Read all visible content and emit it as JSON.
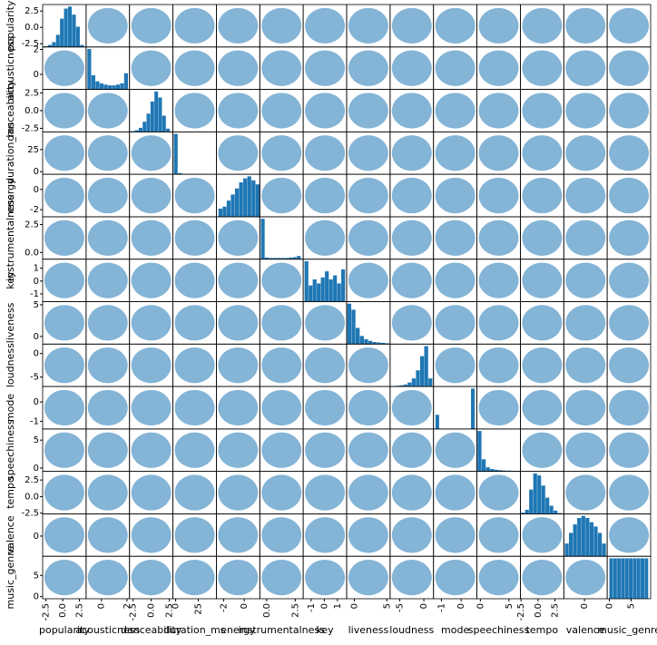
{
  "chart_data": {
    "type": "scatter_matrix",
    "color": "#1f77b4",
    "variables": [
      {
        "name": "popularity",
        "lim": [
          -3,
          3.5
        ],
        "ticks": [
          -2.5,
          {
            "value": 0,
            "label": "0.0"
          },
          2.5
        ],
        "bins": [
          -2.8,
          -2.2,
          -1.6,
          -1,
          -0.4,
          0.2,
          0.8,
          1.4,
          2,
          2.6,
          3.2
        ],
        "counts": [
          2,
          5,
          12,
          30,
          70,
          95,
          100,
          80,
          50,
          5
        ]
      },
      {
        "name": "acousticness",
        "lim": [
          -1.2,
          2.2
        ],
        "ticks": [
          0,
          2
        ],
        "bins": [
          -1.1,
          -0.78,
          -0.46,
          -0.14,
          0.18,
          0.5,
          0.82,
          1.14,
          1.46,
          1.78,
          2.1
        ],
        "counts": [
          100,
          35,
          20,
          15,
          12,
          10,
          10,
          12,
          15,
          40
        ]
      },
      {
        "name": "danceability",
        "lim": [
          -3,
          3
        ],
        "ticks": [
          -2.5,
          {
            "value": 0,
            "label": "0.0"
          },
          2.5
        ],
        "bins": [
          -2.8,
          -2.26,
          -1.72,
          -1.18,
          -0.64,
          -0.1,
          0.44,
          0.98,
          1.52,
          2.06,
          2.6
        ],
        "counts": [
          2,
          4,
          10,
          25,
          45,
          75,
          100,
          85,
          40,
          8
        ]
      },
      {
        "name": "duration_ms",
        "lim": [
          -3,
          45
        ],
        "ticks": [
          0,
          25
        ],
        "bins": [
          -2,
          2.5,
          7,
          11.5,
          16,
          20.5,
          25,
          29.5,
          34,
          38.5,
          43
        ],
        "counts": [
          100,
          3,
          1,
          0,
          0,
          0,
          0,
          0,
          0,
          0
        ]
      },
      {
        "name": "energy",
        "lim": [
          -2.7,
          1.5
        ],
        "ticks": [
          -2,
          0
        ],
        "bins": [
          -2.5,
          -2.1,
          -1.7,
          -1.3,
          -0.9,
          -0.5,
          -0.1,
          0.3,
          0.7,
          1.1,
          1.5
        ],
        "counts": [
          20,
          25,
          40,
          55,
          70,
          85,
          95,
          100,
          90,
          80
        ]
      },
      {
        "name": "instrumentalness",
        "lim": [
          -0.6,
          3.2
        ],
        "ticks": [
          {
            "value": 0,
            "label": "0.0"
          },
          2.5
        ],
        "bins": [
          -0.5,
          -0.15,
          0.2,
          0.55,
          0.9,
          1.25,
          1.6,
          1.95,
          2.3,
          2.65,
          3
        ],
        "counts": [
          100,
          4,
          3,
          3,
          3,
          3,
          3,
          4,
          5,
          8
        ]
      },
      {
        "name": "key",
        "lim": [
          -1.6,
          1.7
        ],
        "ticks": [
          -1,
          0,
          1
        ],
        "bins": [
          -1.5,
          -1.19,
          -0.88,
          -0.57,
          -0.26,
          0.05,
          0.36,
          0.67,
          0.98,
          1.29,
          1.6
        ],
        "counts": [
          100,
          40,
          55,
          45,
          60,
          75,
          55,
          65,
          45,
          80
        ]
      },
      {
        "name": "liveness",
        "lim": [
          -1.2,
          5.5
        ],
        "ticks": [
          0,
          5
        ],
        "bins": [
          -1.1,
          -0.45,
          0.2,
          0.85,
          1.5,
          2.15,
          2.8,
          3.45,
          4.1,
          4.75,
          5.4
        ],
        "counts": [
          100,
          85,
          40,
          20,
          12,
          8,
          5,
          4,
          3,
          2
        ]
      },
      {
        "name": "loudness",
        "lim": [
          -7,
          2
        ],
        "ticks": [
          -5,
          0
        ],
        "bins": [
          -6.8,
          -5.94,
          -5.08,
          -4.22,
          -3.36,
          -2.5,
          -1.64,
          -0.78,
          0.08,
          0.94,
          1.8
        ],
        "counts": [
          1,
          2,
          3,
          5,
          10,
          20,
          40,
          75,
          100,
          20
        ]
      },
      {
        "name": "mode",
        "lim": [
          -1.4,
          0.8
        ],
        "ticks": [
          -1,
          0
        ],
        "bins": [
          -1.3,
          -1.1,
          -0.9,
          -0.7,
          -0.5,
          -0.3,
          -0.1,
          0.1,
          0.3,
          0.5,
          0.7
        ],
        "counts": [
          35,
          0,
          0,
          0,
          0,
          0,
          0,
          0,
          0,
          100
        ]
      },
      {
        "name": "speechiness",
        "lim": [
          -0.6,
          7
        ],
        "ticks": [
          0,
          5
        ],
        "bins": [
          -0.5,
          0.24,
          0.98,
          1.72,
          2.46,
          3.2,
          3.94,
          4.68,
          5.42,
          6.16,
          6.9
        ],
        "counts": [
          100,
          30,
          10,
          6,
          4,
          3,
          2,
          2,
          1,
          1
        ]
      },
      {
        "name": "tempo",
        "lim": [
          -2.6,
          3.8
        ],
        "ticks": [
          -2.5,
          {
            "value": 0,
            "label": "0.0"
          },
          2.5
        ],
        "bins": [
          -2.5,
          -1.9,
          -1.3,
          -0.7,
          -0.1,
          0.5,
          1.1,
          1.7,
          2.3,
          2.9,
          3.5
        ],
        "counts": [
          3,
          10,
          60,
          100,
          95,
          70,
          40,
          20,
          8,
          2
        ]
      },
      {
        "name": "valence",
        "lim": [
          -2,
          2.2
        ],
        "ticks": [
          0
        ],
        "bins": [
          -1.9,
          -1.5,
          -1.1,
          -0.7,
          -0.3,
          0.1,
          0.5,
          0.9,
          1.3,
          1.7,
          2.1
        ],
        "counts": [
          30,
          55,
          75,
          90,
          95,
          90,
          80,
          70,
          55,
          30
        ]
      },
      {
        "name": "music_genre",
        "lim": [
          -0.5,
          9.5
        ],
        "ticks": [
          0,
          5
        ],
        "bins": [
          0,
          0.9,
          1.8,
          2.7,
          3.6,
          4.5,
          5.4,
          6.3,
          7.2,
          8.1,
          9
        ],
        "counts": [
          100,
          100,
          100,
          100,
          100,
          100,
          100,
          100,
          100,
          100
        ]
      }
    ]
  }
}
